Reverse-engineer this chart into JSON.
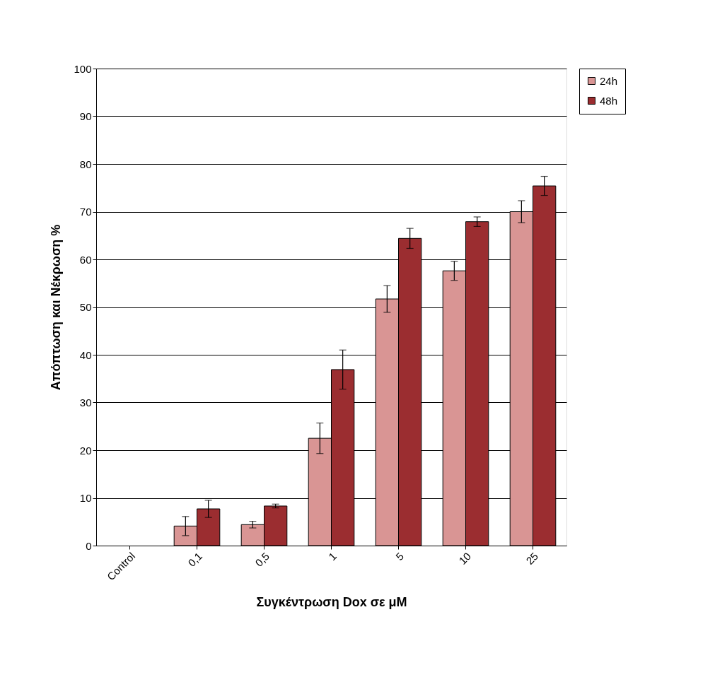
{
  "chart_data": {
    "type": "bar",
    "xlabel": "Συγκέντρωση Dox σε μM",
    "ylabel": "Απόπτωση και Νέκρωση %",
    "categories": [
      "Control",
      "0,1",
      "0,5",
      "1",
      "5",
      "10",
      "25"
    ],
    "series": [
      {
        "name": "24h",
        "color": "#d99594",
        "values": [
          null,
          4.1,
          4.4,
          22.5,
          51.7,
          57.6,
          70.0
        ],
        "errors": [
          null,
          2.0,
          0.7,
          3.2,
          2.8,
          2.0,
          2.3
        ]
      },
      {
        "name": "48h",
        "color": "#9b2d30",
        "values": [
          null,
          7.7,
          8.3,
          36.9,
          64.4,
          67.9,
          75.4
        ],
        "errors": [
          null,
          1.8,
          0.4,
          4.1,
          2.1,
          1.0,
          2.0
        ]
      }
    ],
    "ylim": [
      0,
      100
    ],
    "yticks": [
      0,
      10,
      20,
      30,
      40,
      50,
      60,
      70,
      80,
      90,
      100
    ],
    "grid": "y",
    "legend": "right"
  }
}
